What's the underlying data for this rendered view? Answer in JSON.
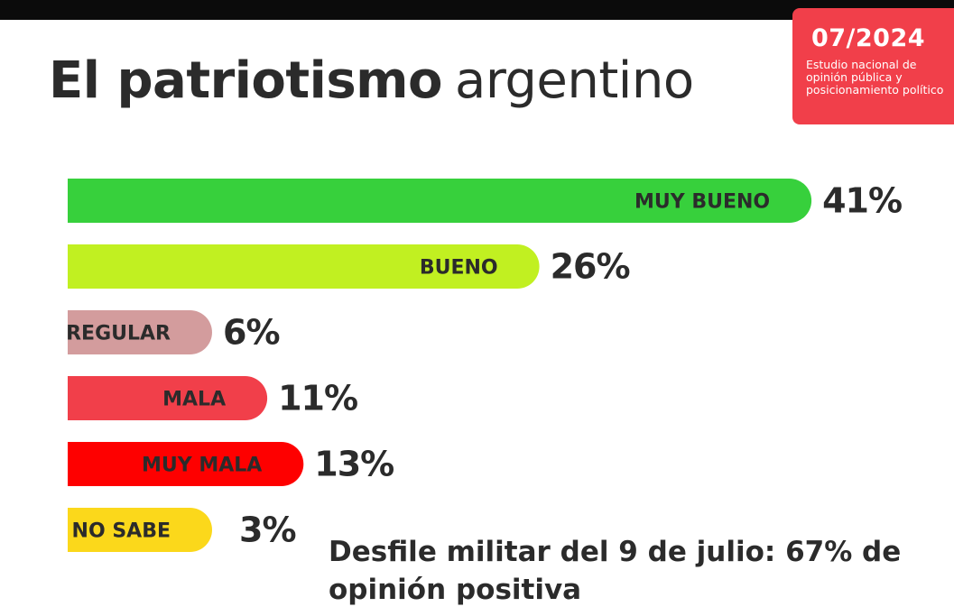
{
  "header": {
    "title_bold": "El patriotismo",
    "title_light": "argentino"
  },
  "badge": {
    "date": "07/2024",
    "description": "Estudio nacional de opinión pública y posicionamiento político",
    "color": "#f13f4a"
  },
  "chart_data": {
    "type": "bar",
    "orientation": "horizontal",
    "categories": [
      "MUY BUENO",
      "BUENO",
      "REGULAR",
      "MALA",
      "MUY MALA",
      "NO SABE"
    ],
    "values": [
      41,
      26,
      6,
      11,
      13,
      3
    ],
    "value_labels": [
      "41%",
      "26%",
      "6%",
      "11%",
      "13%",
      "3%"
    ],
    "colors": [
      "#37d03c",
      "#c1f021",
      "#d39c9d",
      "#f13f4a",
      "#fe0000",
      "#fbd81b"
    ],
    "title": "El patriotismo argentino",
    "xlabel": "",
    "ylabel": "",
    "grid": false,
    "legend": "none"
  },
  "caption": "Desfile militar del 9 de julio: 67% de opinión positiva"
}
